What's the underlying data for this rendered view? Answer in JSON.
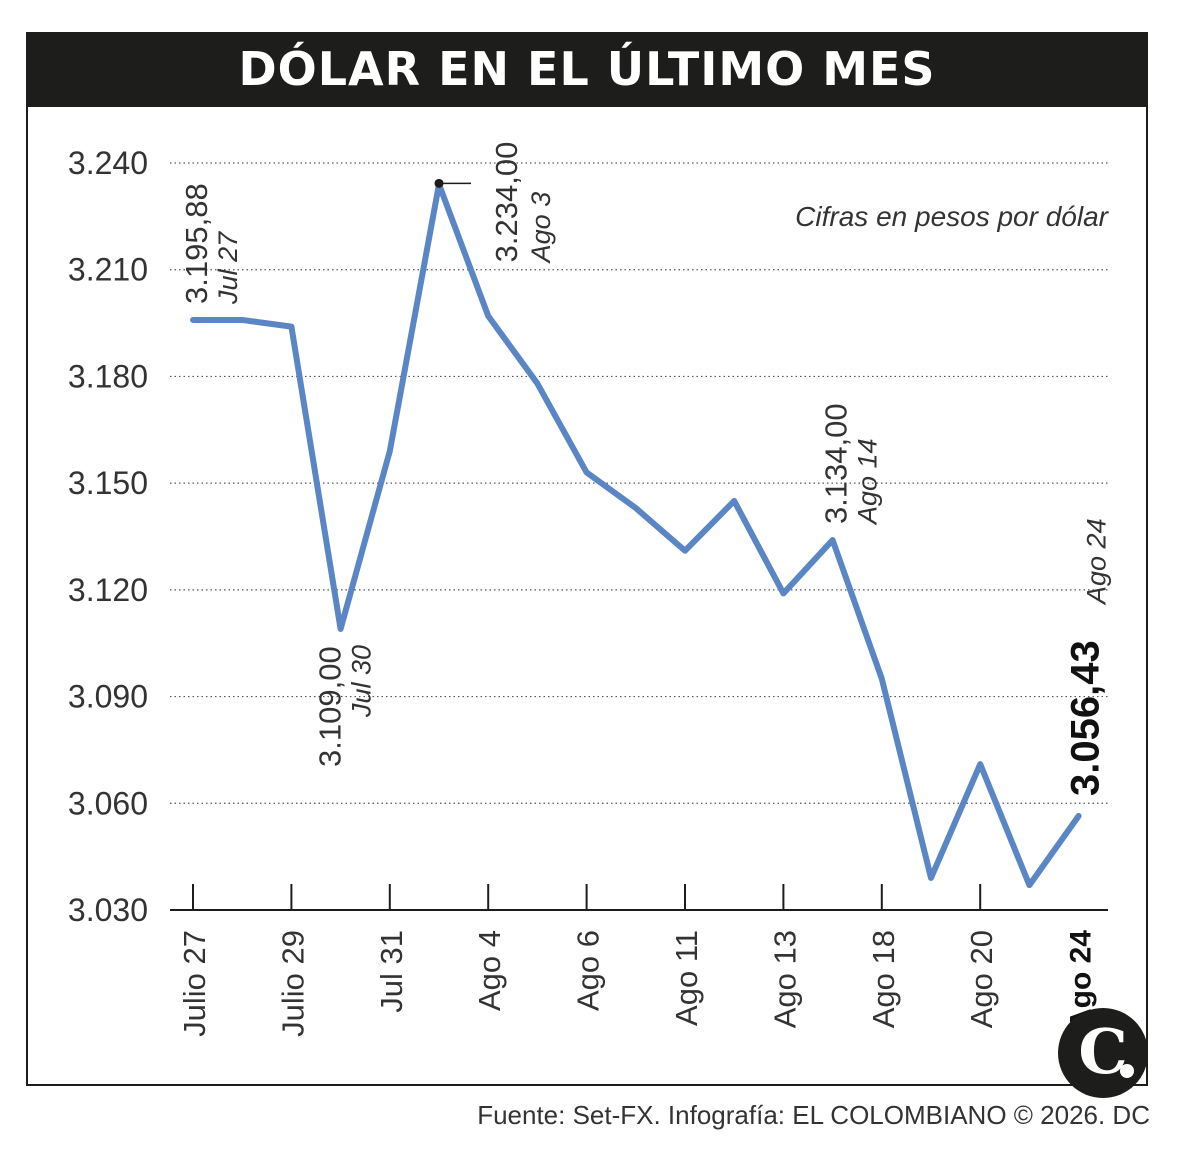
{
  "header": {
    "title": "DÓLAR EN EL ÚLTIMO MES"
  },
  "note": "Cifras en pesos por dólar",
  "source": "Fuente: Set-FX. Infografía: EL COLOMBIANO © 2026. DC",
  "logo": {
    "text": "C",
    "icon": "el-colombiano-logo"
  },
  "colors": {
    "line": "#5b86c5",
    "header_bg": "#1d1d1b",
    "grid": "#555555",
    "text": "#222222"
  },
  "chart_data": {
    "type": "line",
    "title": "DÓLAR EN EL ÚLTIMO MES",
    "ylim": [
      3030,
      3240
    ],
    "yticks": [
      3030,
      3060,
      3090,
      3120,
      3150,
      3180,
      3210,
      3240
    ],
    "ytick_labels": [
      "3.030",
      "3.060",
      "3.090",
      "3.120",
      "3.150",
      "3.180",
      "3.210",
      "3.240"
    ],
    "grid": true,
    "x_tick_labels": [
      "Julio 27",
      "Julio 29",
      "Jul 31",
      "Ago 4",
      "Ago 6",
      "Ago 11",
      "Ago 13",
      "Ago 18",
      "Ago 20",
      "Ago 24"
    ],
    "x_tick_positions": [
      0,
      2,
      4,
      6,
      8,
      10,
      12,
      14,
      16,
      18
    ],
    "values": [
      3195.88,
      3195.88,
      3194,
      3109,
      3159,
      3234,
      3197,
      3178,
      3153,
      3143,
      3131,
      3145,
      3119,
      3134,
      3095,
      3039,
      3071,
      3037,
      3056.43
    ],
    "annotations": [
      {
        "index": 0,
        "value": "3.195,88",
        "date": "Jul 27",
        "position": "above"
      },
      {
        "index": 3,
        "value": "3.109,00",
        "date": "Jul 30",
        "position": "below"
      },
      {
        "index": 5,
        "value": "3.234,00",
        "date": "Ago 3",
        "position": "right"
      },
      {
        "index": 13,
        "value": "3.134,00",
        "date": "Ago 14",
        "position": "above"
      },
      {
        "index": 18,
        "value": "3.056,43",
        "date": "Ago 24",
        "position": "above",
        "bold": true
      }
    ]
  }
}
